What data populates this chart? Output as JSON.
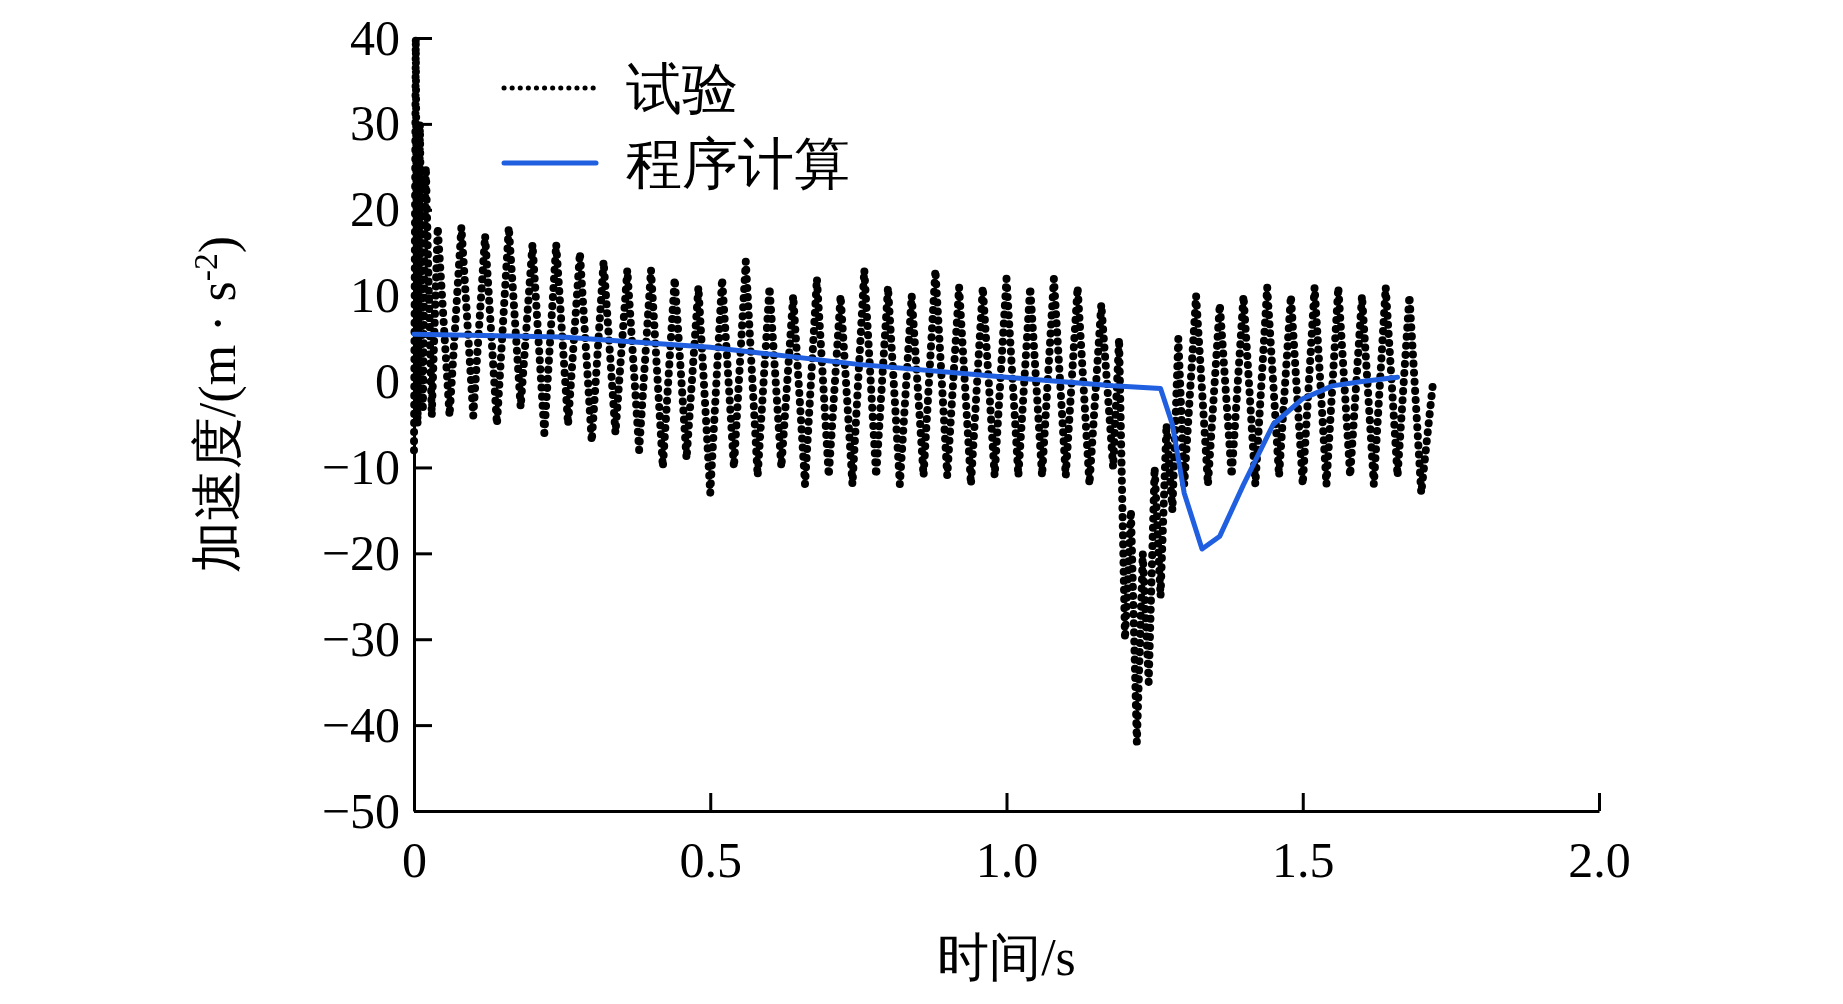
{
  "chart_data": {
    "type": "line",
    "xlabel": "时间/s",
    "ylabel": "加速度/(m · s$^{-2}$)",
    "xlim": [
      0,
      2.0
    ],
    "xticks": [
      0,
      0.5,
      {
        "value": 1,
        "label": "1.0"
      },
      1.5,
      {
        "value": 2,
        "label": "2.0"
      }
    ],
    "ylim": [
      -50,
      40
    ],
    "yticks": [
      {
        "value": -50,
        "label": "−50"
      },
      {
        "value": -40,
        "label": "−40"
      },
      {
        "value": -30,
        "label": "−30"
      },
      {
        "value": -20,
        "label": "−20"
      },
      {
        "value": -10,
        "label": "−10"
      },
      0,
      10,
      20,
      30,
      40
    ],
    "legend": "top left",
    "grid": false,
    "series": [
      {
        "name": "试验",
        "color": "#000000",
        "line_style": "dotted",
        "x": [
          0,
          0.003,
          0.006,
          0.01,
          0.015,
          0.02,
          0.03,
          0.04,
          0.06,
          0.08,
          0.1,
          0.12,
          0.14,
          0.16,
          0.18,
          0.2,
          0.22,
          0.24,
          0.26,
          0.28,
          0.3,
          0.32,
          0.34,
          0.36,
          0.38,
          0.4,
          0.42,
          0.44,
          0.46,
          0.48,
          0.5,
          0.52,
          0.54,
          0.56,
          0.58,
          0.6,
          0.62,
          0.64,
          0.66,
          0.68,
          0.7,
          0.72,
          0.74,
          0.76,
          0.78,
          0.8,
          0.82,
          0.84,
          0.86,
          0.88,
          0.9,
          0.92,
          0.94,
          0.96,
          0.98,
          1.0,
          1.02,
          1.04,
          1.06,
          1.08,
          1.1,
          1.12,
          1.14,
          1.16,
          1.18,
          1.19,
          1.2,
          1.21,
          1.22,
          1.23,
          1.24,
          1.25,
          1.26,
          1.27,
          1.28,
          1.29,
          1.3,
          1.32,
          1.34,
          1.36,
          1.38,
          1.4,
          1.42,
          1.44,
          1.46,
          1.48,
          1.5,
          1.52,
          1.54,
          1.56,
          1.58,
          1.6,
          1.62,
          1.64,
          1.66,
          1.68,
          1.7,
          1.72
        ],
        "values": [
          -8,
          40,
          -5,
          30,
          -3,
          25,
          -4,
          18,
          -4,
          18,
          -4,
          17,
          -5,
          18,
          -3,
          16,
          -6,
          16,
          -5,
          15,
          -7,
          14,
          -6,
          13,
          -8,
          13,
          -10,
          12,
          -9,
          11,
          -13,
          12,
          -10,
          14,
          -11,
          11,
          -10,
          10,
          -12,
          12,
          -11,
          10,
          -12,
          13,
          -11,
          11,
          -12,
          10,
          -11,
          13,
          -11,
          11,
          -12,
          11,
          -11,
          12,
          -11,
          11,
          -11,
          12,
          -11,
          11,
          -12,
          9,
          -10,
          5,
          -30,
          -15,
          -42,
          -20,
          -35,
          -10,
          -25,
          -5,
          -15,
          5,
          -12,
          10,
          -12,
          9,
          -11,
          10,
          -12,
          11,
          -11,
          10,
          -12,
          11,
          -12,
          11,
          -11,
          10,
          -12,
          11,
          -11,
          10,
          -13,
          0
        ]
      },
      {
        "name": "程序计算",
        "color": "#1f5fe0",
        "line_style": "solid",
        "x": [
          0,
          0.25,
          0.5,
          0.75,
          1.0,
          1.18,
          1.26,
          1.28,
          1.3,
          1.33,
          1.36,
          1.4,
          1.45,
          1.5,
          1.55,
          1.6,
          1.66
        ],
        "values": [
          5.5,
          5.2,
          4,
          2,
          0.5,
          -0.5,
          -0.8,
          -5,
          -13,
          -19.5,
          -18,
          -12,
          -5,
          -2,
          -0.5,
          0,
          0.5
        ]
      }
    ]
  }
}
